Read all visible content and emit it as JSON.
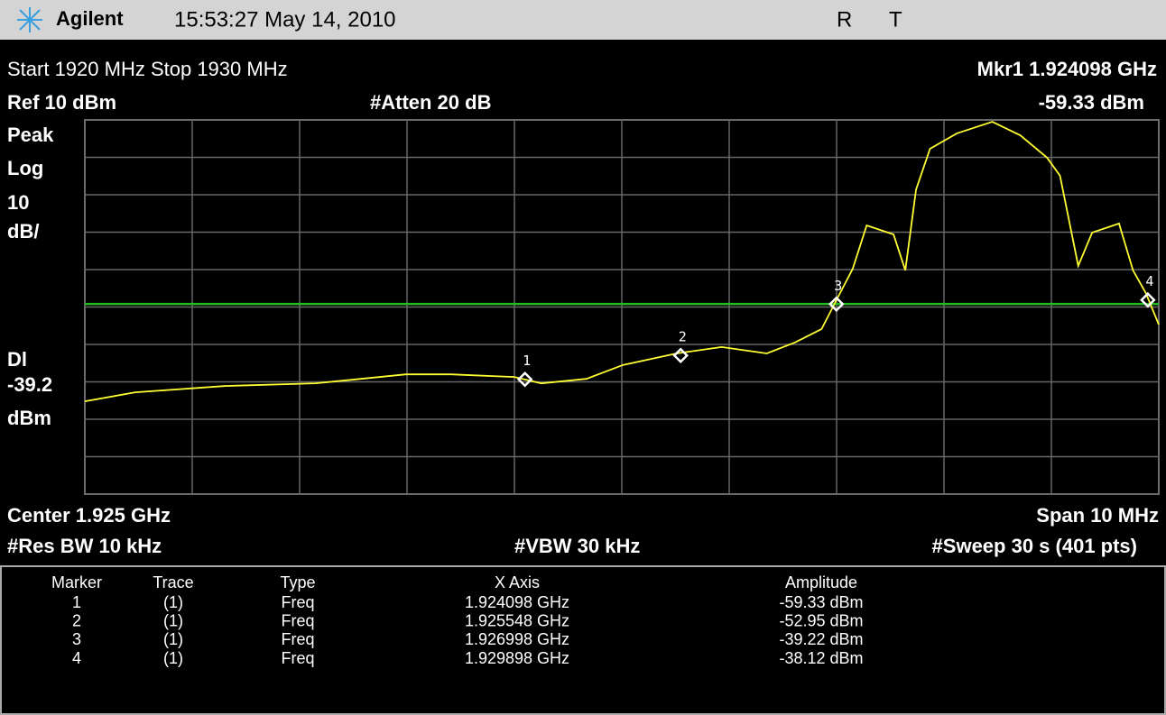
{
  "header": {
    "brand": "Agilent",
    "datetime": "15:53:27  May 14, 2010",
    "status": [
      "R",
      "T"
    ]
  },
  "top": {
    "span_range": "Start 1920 MHz  Stop 1930 MHz",
    "ref": "Ref 10 dBm",
    "atten": "#Atten 20 dB",
    "marker_freq": "Mkr1  1.924098 GHz",
    "marker_amp": "-59.33 dBm"
  },
  "left": {
    "detector": "Peak",
    "scale": "Log",
    "per_div": "10",
    "per_div_unit": "dB/",
    "display_line": "Dl",
    "display_value": "-39.2",
    "display_unit": "dBm"
  },
  "bottom": {
    "center": "Center 1.925 GHz",
    "span": "Span 10 MHz",
    "rbw": "#Res BW 10 kHz",
    "vbw": "#VBW 30 kHz",
    "sweep": "#Sweep 30 s (401 pts)"
  },
  "table": {
    "columns": [
      "Marker",
      "Trace",
      "Type",
      "X Axis",
      "Amplitude"
    ],
    "rows": [
      [
        "1",
        "(1)",
        "Freq",
        "1.924098 GHz",
        "-59.33 dBm"
      ],
      [
        "2",
        "(1)",
        "Freq",
        "1.925548 GHz",
        "-52.95 dBm"
      ],
      [
        "3",
        "(1)",
        "Freq",
        "1.926998 GHz",
        "-39.22 dBm"
      ],
      [
        "4",
        "(1)",
        "Freq",
        "1.929898 GHz",
        "-38.12 dBm"
      ]
    ]
  },
  "chart_data": {
    "type": "line",
    "color": "#ffff33",
    "x": [
      1.92,
      1.92047,
      1.92131,
      1.92215,
      1.92299,
      1.92341,
      1.924,
      1.92425,
      1.92467,
      1.92501,
      1.92551,
      1.92593,
      1.92635,
      1.92661,
      1.92686,
      1.92701,
      1.92715,
      1.92728,
      1.92753,
      1.92764,
      1.92774,
      1.92787,
      1.92812,
      1.92845,
      1.92871,
      1.92896,
      1.92908,
      1.92925,
      1.92938,
      1.92963,
      1.92976,
      1.92988,
      1.93
    ],
    "values": [
      -65.2,
      -62.8,
      -61.1,
      -60.4,
      -58,
      -58,
      -58.7,
      -60.4,
      -59.2,
      -55.5,
      -52.4,
      -50.7,
      -52.4,
      -49.5,
      -45.9,
      -37.5,
      -29.8,
      -18.2,
      -20.6,
      -30.2,
      -8.6,
      2.3,
      6.4,
      9.5,
      5.9,
      -0.1,
      -4.9,
      -29,
      -20.1,
      -17.7,
      -30.2,
      -36.3,
      -44.7
    ],
    "xlim": [
      1.92,
      1.93
    ],
    "ylim": [
      -90,
      10
    ],
    "xticks": [
      1.92,
      1.921,
      1.922,
      1.923,
      1.924,
      1.925,
      1.926,
      1.927,
      1.928,
      1.929,
      1.93
    ],
    "yticks": [
      -90,
      -80,
      -70,
      -60,
      -50,
      -40,
      -30,
      -20,
      -10,
      0,
      10
    ],
    "grid": true,
    "display_line": -39.2,
    "display_color": "#22bb22",
    "markers": [
      {
        "label": "1",
        "x": 1.924098,
        "value": -59.33
      },
      {
        "label": "2",
        "x": 1.925548,
        "value": -52.95
      },
      {
        "label": "3",
        "x": 1.926998,
        "value": -39.22
      },
      {
        "label": "4",
        "x": 1.929898,
        "value": -38.12
      }
    ]
  }
}
